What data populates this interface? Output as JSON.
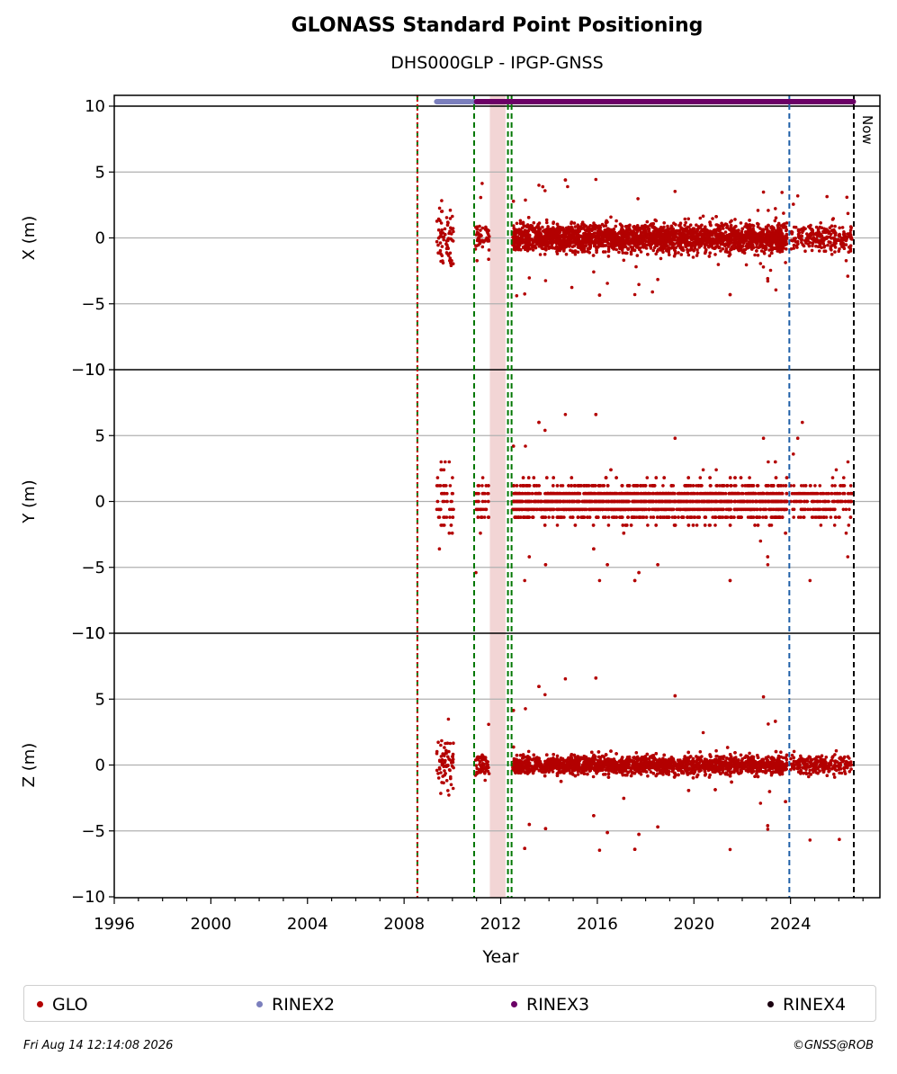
{
  "chart_data": {
    "type": "scatter",
    "title": "GLONASS Standard Point Positioning",
    "subtitle": "DHS000GLP - IPGP-GNSS",
    "xlabel": "Year",
    "xlim": [
      1996,
      2027.7
    ],
    "xticks": [
      "1996",
      "2000",
      "2004",
      "2008",
      "2012",
      "2016",
      "2020",
      "2024"
    ],
    "grid": "horizontal",
    "panels": [
      {
        "ylabel": "X (m)",
        "ylim": [
          -10,
          10
        ],
        "yticks": [
          "−10",
          "−5",
          "0",
          "5",
          "10"
        ],
        "bands": [
          {
            "start": 2009.35,
            "end": 2010.05,
            "spread": 3.2,
            "outlier": 8.5
          },
          {
            "start": 2010.95,
            "end": 2011.55,
            "spread": 1.4,
            "outlier": 4.5
          },
          {
            "start": 2012.5,
            "end": 2023.85,
            "spread": 1.5,
            "outlier": 4.5
          },
          {
            "start": 2024.0,
            "end": 2026.55,
            "spread": 1.4,
            "outlier": 4.0
          }
        ]
      },
      {
        "ylabel": "Y (m)",
        "ylim": [
          -10,
          10
        ],
        "yticks": [
          "−10",
          "−5",
          "0",
          "5",
          "10"
        ],
        "bands": [
          {
            "start": 2009.35,
            "end": 2010.05,
            "spread": 4.5,
            "outlier": 9.0
          },
          {
            "start": 2010.95,
            "end": 2011.55,
            "spread": 2.5,
            "outlier": 5.5
          },
          {
            "start": 2012.5,
            "end": 2023.85,
            "spread": 2.0,
            "outlier": 6.5
          },
          {
            "start": 2024.0,
            "end": 2026.55,
            "spread": 2.0,
            "outlier": 6.0
          }
        ]
      },
      {
        "ylabel": "Z (m)",
        "ylim": [
          -10,
          10
        ],
        "yticks": [
          "−10",
          "−5",
          "0",
          "5",
          "10"
        ],
        "bands": [
          {
            "start": 2009.35,
            "end": 2010.05,
            "spread": 3.0,
            "outlier": 9.5
          },
          {
            "start": 2010.95,
            "end": 2011.55,
            "spread": 1.3,
            "outlier": 4.0
          },
          {
            "start": 2012.5,
            "end": 2023.85,
            "spread": 1.0,
            "outlier": 6.7
          },
          {
            "start": 2024.0,
            "end": 2026.55,
            "spread": 1.0,
            "outlier": 5.9
          }
        ]
      }
    ],
    "vertical_lines": [
      {
        "x": 2008.55,
        "color": "#007700",
        "style": "dashed"
      },
      {
        "x": 2008.55,
        "color": "#cc0000",
        "style": "dotted"
      },
      {
        "x": 2010.9,
        "color": "#007700",
        "style": "dashed"
      },
      {
        "x": 2012.3,
        "color": "#007700",
        "style": "dashed"
      },
      {
        "x": 2012.45,
        "color": "#007700",
        "style": "dashed"
      },
      {
        "x": 2023.95,
        "color": "#1f5fa8",
        "style": "dashed"
      },
      {
        "x": 2026.62,
        "color": "#000000",
        "style": "dashed"
      }
    ],
    "shaded_region": {
      "start": 2011.55,
      "end": 2012.2,
      "color": "#f2d5d5"
    },
    "now_label": "Now",
    "availability_bars": [
      {
        "series": "RINEX2",
        "start": 2009.35,
        "end": 2010.75,
        "color": "#7b7fbd"
      },
      {
        "series": "RINEX2",
        "start": 2010.85,
        "end": 2011.0,
        "color": "#7b7fbd"
      },
      {
        "series": "RINEX3",
        "start": 2011.0,
        "end": 2023.95,
        "color": "#6b0066"
      },
      {
        "series": "RINEX3",
        "start": 2023.95,
        "end": 2026.6,
        "color": "#6b0066"
      }
    ],
    "series": [
      {
        "name": "GLO",
        "color": "#b30000"
      },
      {
        "name": "RINEX2",
        "color": "#7b7fbd"
      },
      {
        "name": "RINEX3",
        "color": "#6b0066"
      },
      {
        "name": "RINEX4",
        "color": "#1a0010"
      }
    ]
  },
  "footer": {
    "date": "Fri Aug 14 12:14:08 2026",
    "copyright": "©GNSS@ROB"
  }
}
